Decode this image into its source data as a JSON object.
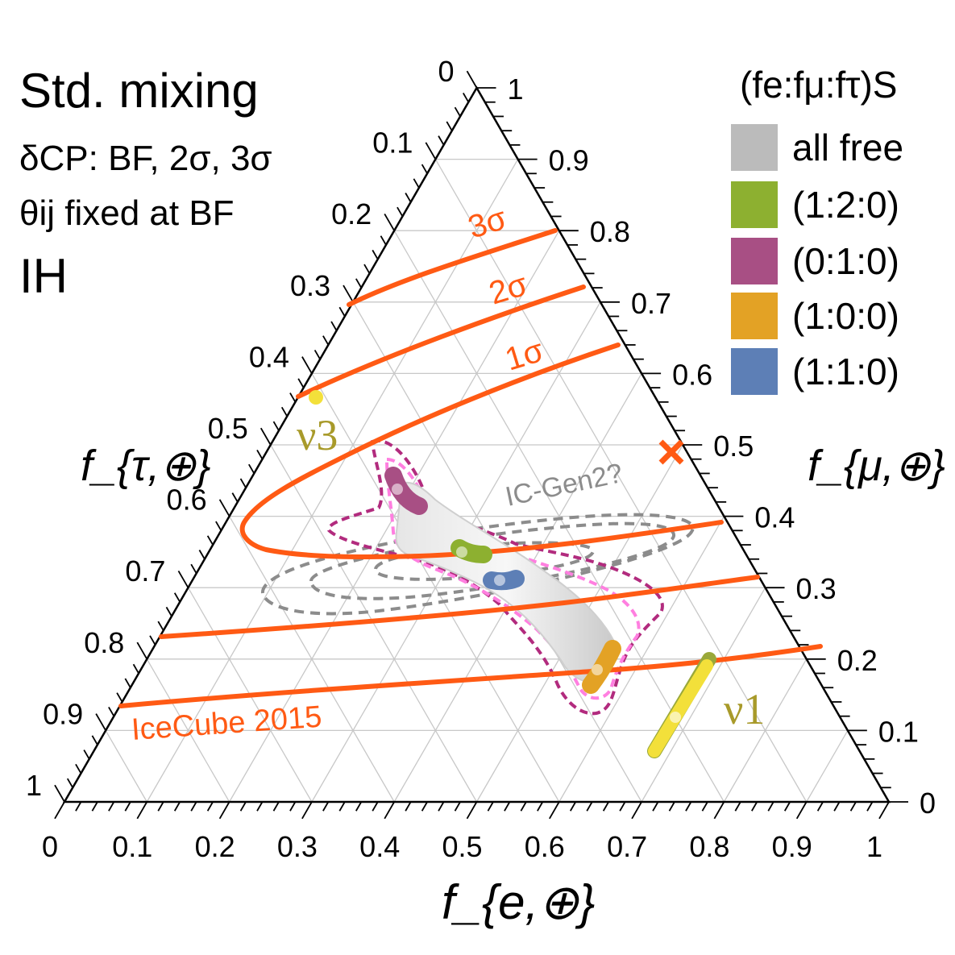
{
  "chart_data": {
    "type": "ternary",
    "axes": {
      "bottom": {
        "label": "f_{e,⊕}",
        "ticks": [
          "0",
          "0.1",
          "0.2",
          "0.3",
          "0.4",
          "0.5",
          "0.6",
          "0.7",
          "0.8",
          "0.9",
          "1"
        ]
      },
      "right": {
        "label": "f_{μ,⊕}",
        "ticks": [
          "0",
          "0.1",
          "0.2",
          "0.3",
          "0.4",
          "0.5",
          "0.6",
          "0.7",
          "0.8",
          "0.9",
          "1"
        ]
      },
      "left": {
        "label": "f_{τ,⊕}",
        "ticks": [
          "0",
          "0.1",
          "0.2",
          "0.3",
          "0.4",
          "0.5",
          "0.6",
          "0.7",
          "0.8",
          "0.9",
          "1"
        ]
      },
      "grid": true
    },
    "info": {
      "title": "Std. mixing",
      "line1": "δCP: BF, 2σ, 3σ",
      "line2": "θij fixed at BF",
      "ordering": "IH"
    },
    "legend": {
      "title": "(fe:fμ:fτ)S",
      "placement": "top-right",
      "entries": [
        {
          "label": "all free",
          "color": "#bbbbbb"
        },
        {
          "label": "(1:2:0)",
          "color": "#8db030"
        },
        {
          "label": "(0:1:0)",
          "color": "#a84f84"
        },
        {
          "label": "(1:0:0)",
          "color": "#e3a225"
        },
        {
          "label": "(1:1:0)",
          "color": "#5d7fb6"
        }
      ]
    },
    "icecube_2015": {
      "label": "IceCube 2015",
      "color": "#ff5a14",
      "contour_labels": [
        "1σ",
        "2σ",
        "3σ"
      ],
      "best_fit": {
        "fe": 0.0,
        "fmu": 0.5,
        "ftau": 0.5
      }
    },
    "icgen2_label": "IC-Gen2?",
    "mass_eigenstates": [
      {
        "label": "ν3",
        "fe": 0.02,
        "fmu": 0.45,
        "ftau": 0.53
      },
      {
        "label": "ν1",
        "fe": 0.68,
        "fmu": 0.18,
        "ftau": 0.14
      }
    ],
    "source_regions": [
      {
        "name": "(0:1:0)",
        "fe": 0.17,
        "fmu": 0.44,
        "ftau": 0.39
      },
      {
        "name": "(1:2:0)",
        "fe": 0.3,
        "fmu": 0.36,
        "ftau": 0.34
      },
      {
        "name": "(1:1:0)",
        "fe": 0.37,
        "fmu": 0.31,
        "ftau": 0.32
      },
      {
        "name": "(1:0:0)",
        "fe": 0.56,
        "fmu": 0.19,
        "ftau": 0.25
      }
    ]
  }
}
